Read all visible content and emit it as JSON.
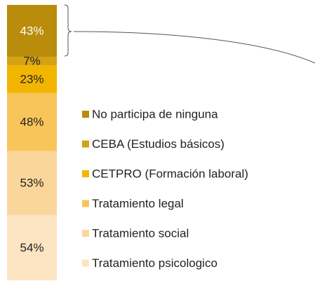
{
  "chart_data": {
    "type": "bar",
    "stacked": true,
    "categories": [
      null
    ],
    "series": [
      {
        "name": "Tratamiento psicologico",
        "color": "#fde4c3",
        "values": [
          54
        ],
        "value_labels": [
          "54%"
        ]
      },
      {
        "name": "Tratamiento social",
        "color": "#fbd69b",
        "values": [
          53
        ],
        "value_labels": [
          "53%"
        ]
      },
      {
        "name": "Tratamiento legal",
        "color": "#f8c55a",
        "values": [
          48
        ],
        "value_labels": [
          "48%"
        ]
      },
      {
        "name": "CETPRO (Formación laboral)",
        "color": "#f2b500",
        "values": [
          23
        ],
        "value_labels": [
          "23%"
        ]
      },
      {
        "name": "CEBA (Estudios básicos)",
        "color": "#d4a212",
        "values": [
          7
        ],
        "value_labels": [
          "7%"
        ]
      },
      {
        "name": "No participa de ninguna",
        "color": "#b98c0b",
        "values": [
          43
        ],
        "value_labels": [
          "43%"
        ]
      }
    ]
  }
}
